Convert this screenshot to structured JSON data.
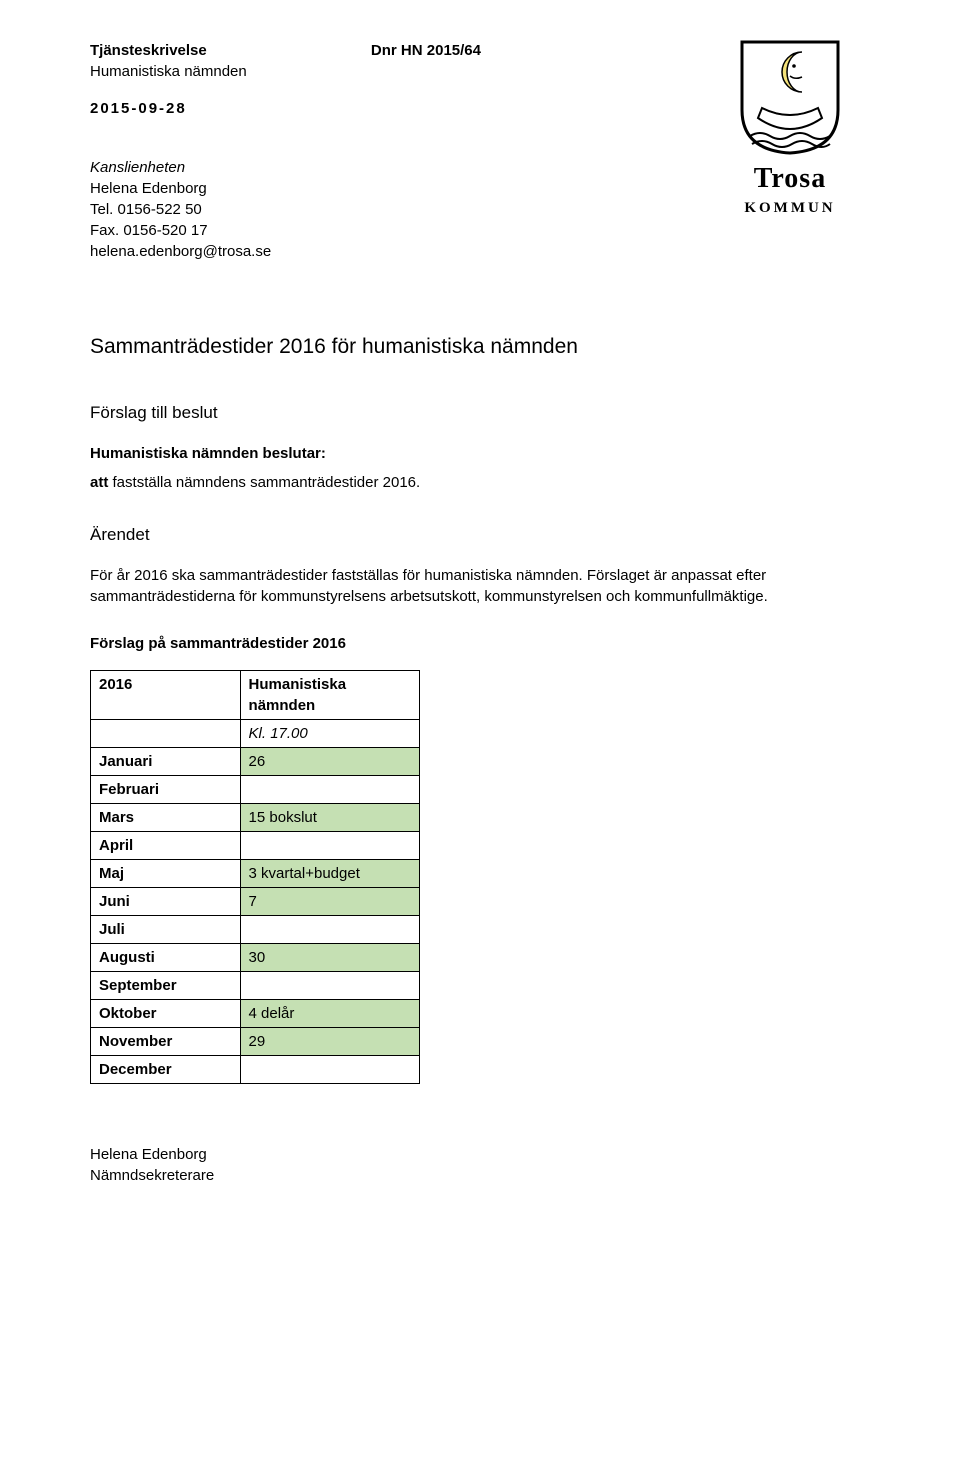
{
  "header": {
    "doc_type": "Tjänsteskrivelse",
    "committee": "Humanistiska nämnden",
    "date": "2015-09-28",
    "dnr": "Dnr HN 2015/64"
  },
  "from": {
    "unit": "Kanslienheten",
    "name": "Helena Edenborg",
    "tel": "Tel. 0156-522 50",
    "fax": "Fax. 0156-520 17",
    "email": "helena.edenborg@trosa.se"
  },
  "logo": {
    "line1": "Trosa",
    "line2": "KOMMUN"
  },
  "title": "Sammanträdestider 2016 för humanistiska nämnden",
  "proposal_heading": "Förslag till beslut",
  "decision_label": "Humanistiska nämnden beslutar:",
  "decision_text": "att fastställa nämndens sammanträdestider 2016.",
  "matter_heading": "Ärendet",
  "matter_body": "För år 2016 ska sammanträdestider fastställas för humanistiska nämnden. Förslaget är anpassat efter sammanträdestiderna för kommunstyrelsens arbetsutskott, kommunstyrelsen och kommunfullmäktige.",
  "table_title": "Förslag på sammanträdestider 2016",
  "table": {
    "year": "2016",
    "col_header_1": "Humanistiska nämnden",
    "time_row": "Kl. 17.00",
    "shaded_color": "#c5e0b3",
    "rows": [
      {
        "month": "Januari",
        "value": "26",
        "shaded": true
      },
      {
        "month": "Februari",
        "value": "",
        "shaded": false
      },
      {
        "month": "Mars",
        "value": "15 bokslut",
        "shaded": true
      },
      {
        "month": "April",
        "value": "",
        "shaded": false
      },
      {
        "month": "Maj",
        "value": "3 kvartal+budget",
        "shaded": true
      },
      {
        "month": "Juni",
        "value": "7",
        "shaded": true
      },
      {
        "month": "Juli",
        "value": "",
        "shaded": false
      },
      {
        "month": "Augusti",
        "value": "30",
        "shaded": true
      },
      {
        "month": "September",
        "value": "",
        "shaded": false
      },
      {
        "month": "Oktober",
        "value": "4 delår",
        "shaded": true
      },
      {
        "month": "November",
        "value": "29",
        "shaded": true
      },
      {
        "month": "December",
        "value": "",
        "shaded": false
      }
    ]
  },
  "signature": {
    "name": "Helena Edenborg",
    "title": "Nämndsekreterare"
  }
}
